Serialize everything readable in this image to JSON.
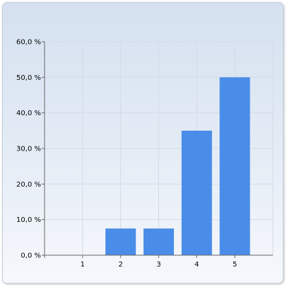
{
  "chart_data": {
    "type": "bar",
    "categories": [
      "1",
      "2",
      "3",
      "4",
      "5"
    ],
    "values": [
      0,
      7.5,
      7.5,
      35,
      50
    ],
    "ylim": [
      0,
      60
    ],
    "yticks": [
      0,
      10,
      20,
      30,
      40,
      50,
      60
    ],
    "ytick_labels": [
      "0,0 %",
      "10,0 %",
      "20,0 %",
      "30,0 %",
      "40,0 %",
      "50,0 %",
      "60,0 %"
    ],
    "xlabel": "",
    "ylabel": "",
    "title": "",
    "grid": true,
    "legend": "none",
    "bar_color": "#4a8de8",
    "grid_color": "#d4dbe5"
  }
}
